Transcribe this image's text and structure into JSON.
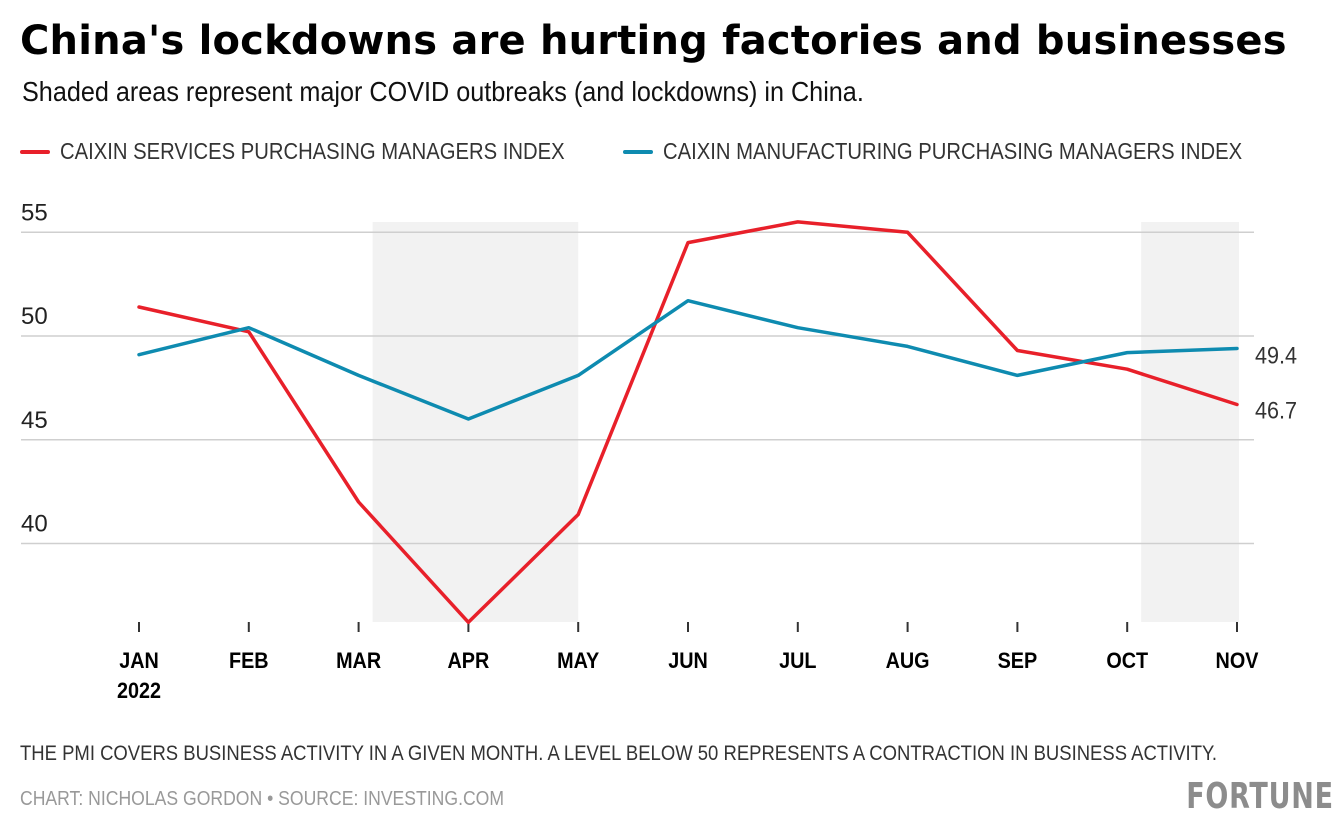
{
  "header": {
    "title": "China's lockdowns are hurting factories and businesses",
    "subtitle": "Shaded areas represent major COVID outbreaks (and lockdowns) in China."
  },
  "legend": [
    {
      "label": "CAIXIN SERVICES PURCHASING MANAGERS INDEX",
      "color": "#e8202a"
    },
    {
      "label": "CAIXIN MANUFACTURING PURCHASING MANAGERS INDEX",
      "color": "#0e8bb0"
    }
  ],
  "chart_data": {
    "type": "line",
    "title": "China's lockdowns are hurting factories and businesses",
    "subtitle": "Shaded areas represent major COVID outbreaks (and lockdowns) in China.",
    "categories": [
      "JAN",
      "FEB",
      "MAR",
      "APR",
      "MAY",
      "JUN",
      "JUL",
      "AUG",
      "SEP",
      "OCT",
      "NOV"
    ],
    "category_sublabels": {
      "JAN": "2022"
    },
    "series": [
      {
        "name": "CAIXIN SERVICES PURCHASING MANAGERS INDEX",
        "color": "#e8202a",
        "values": [
          51.4,
          50.2,
          42.0,
          36.2,
          41.4,
          54.5,
          55.5,
          55.0,
          49.3,
          48.4,
          46.7
        ]
      },
      {
        "name": "CAIXIN MANUFACTURING PURCHASING MANAGERS INDEX",
        "color": "#0e8bb0",
        "values": [
          49.1,
          50.4,
          48.1,
          46.0,
          48.1,
          51.7,
          50.4,
          49.5,
          48.1,
          49.2,
          49.4
        ]
      }
    ],
    "end_labels": [
      "46.7",
      "49.4"
    ],
    "shaded_ranges": [
      [
        "MAR",
        "MAY"
      ],
      [
        "OCT",
        "NOV"
      ]
    ],
    "shade_color": "#f2f2f2",
    "yticks": [
      40,
      45,
      50,
      55
    ],
    "ylim": [
      36.2,
      55.5
    ],
    "xlabel": "",
    "ylabel": "",
    "grid": true,
    "legend_position": "top-left"
  },
  "footer": {
    "note": "THE PMI COVERS BUSINESS ACTIVITY IN A GIVEN MONTH. A LEVEL BELOW 50 REPRESENTS A CONTRACTION IN BUSINESS ACTIVITY.",
    "credit": "CHART: NICHOLAS GORDON • SOURCE: INVESTING.COM",
    "logo": "FORTUNE"
  }
}
